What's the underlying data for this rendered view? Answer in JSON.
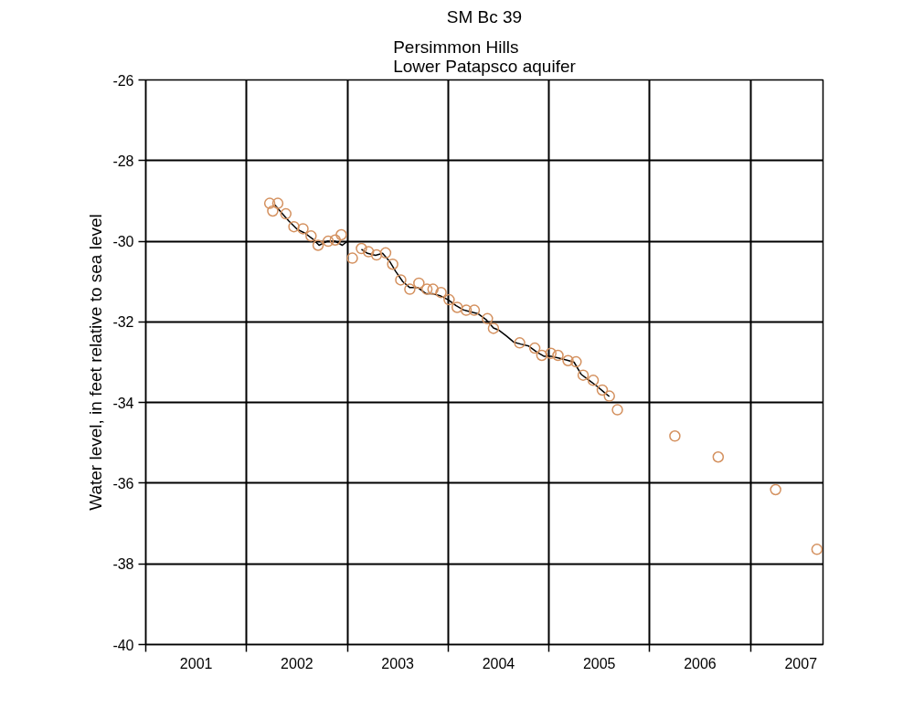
{
  "chart_data": {
    "type": "scatter",
    "title": "SM Bc 39",
    "subtitle": "Persimmon Hills\nLower Patapsco aquifer",
    "ylabel": "Water level, in feet relative to sea level",
    "xlim": [
      2001,
      2007.72
    ],
    "ylim": [
      -40,
      -26
    ],
    "yticks": [
      -40,
      -38,
      -36,
      -34,
      -32,
      -30,
      -28,
      -26
    ],
    "xticks": [
      {
        "value": 2001,
        "label": null
      },
      {
        "value": 2002,
        "label": null
      },
      {
        "value": 2003,
        "label": null
      },
      {
        "value": 2004,
        "label": null
      },
      {
        "value": 2005,
        "label": null
      },
      {
        "value": 2006,
        "label": null
      },
      {
        "value": 2007,
        "label": null
      },
      {
        "value": 2001.5,
        "label": "2001"
      },
      {
        "value": 2002.5,
        "label": "2002"
      },
      {
        "value": 2003.5,
        "label": "2003"
      },
      {
        "value": 2004.5,
        "label": "2004"
      },
      {
        "value": 2005.5,
        "label": "2005"
      },
      {
        "value": 2006.5,
        "label": "2006"
      },
      {
        "value": 2007.5,
        "label": "2007"
      }
    ],
    "grid": true,
    "series": [
      {
        "type": "line",
        "color": "#000000",
        "marker": "none",
        "line_style": "solid",
        "x": [
          2002.28,
          2002.35,
          2002.42,
          2002.5,
          2002.58,
          2002.66,
          2002.72,
          2002.8,
          2002.88,
          2002.95,
          2003.0,
          2003.07,
          2003.14,
          2003.2,
          2003.28,
          2003.35,
          2003.42,
          2003.48,
          2003.55,
          2003.62,
          2003.7,
          2003.78,
          2003.85,
          2003.92,
          2004.0,
          2004.08,
          2004.15,
          2004.22,
          2004.3,
          2004.38,
          2004.45,
          2004.5,
          2004.58,
          2004.65,
          2004.72,
          2004.8,
          2004.88,
          2004.95,
          2005.02,
          2005.1,
          2005.18,
          2005.25,
          2005.32,
          2005.4,
          2005.48,
          2005.55,
          2005.6
        ],
        "values": [
          -29.1,
          -29.3,
          -29.5,
          -29.7,
          -29.8,
          -29.95,
          -30.1,
          -30.0,
          -30.0,
          -30.1,
          -30.0,
          null,
          -30.2,
          -30.3,
          -30.35,
          -30.3,
          -30.5,
          -30.75,
          -31.0,
          -31.15,
          -31.15,
          -31.3,
          -31.3,
          -31.35,
          -31.45,
          -31.6,
          -31.7,
          -31.75,
          -31.8,
          -31.95,
          -32.15,
          -32.2,
          -32.35,
          -32.5,
          -32.55,
          -32.6,
          -32.75,
          -32.85,
          -32.85,
          -32.9,
          -32.95,
          -33.0,
          -33.3,
          -33.45,
          -33.6,
          -33.75,
          -33.85
        ]
      },
      {
        "color": "#d4915f",
        "marker": "circle",
        "x": [
          2002.23,
          2002.26,
          2002.31,
          2002.39,
          2002.47,
          2002.56,
          2002.64,
          2002.71,
          2002.81,
          2002.88,
          2002.94,
          2003.05,
          2003.14,
          2003.21,
          2003.29,
          2003.38,
          2003.45,
          2003.53,
          2003.62,
          2003.71,
          2003.79,
          2003.85,
          2003.93,
          2004.01,
          2004.09,
          2004.18,
          2004.26,
          2004.39,
          2004.45,
          2004.71,
          2004.86,
          2004.93,
          2005.02,
          2005.09,
          2005.19,
          2005.27,
          2005.34,
          2005.44,
          2005.53,
          2005.6,
          2005.68,
          2006.25,
          2006.68,
          2007.25,
          2007.66
        ],
        "values": [
          -29.06,
          -29.25,
          -29.06,
          -29.32,
          -29.64,
          -29.69,
          -29.87,
          -30.1,
          -30.0,
          -29.97,
          -29.84,
          -30.42,
          -30.18,
          -30.26,
          -30.34,
          -30.29,
          -30.57,
          -30.96,
          -31.19,
          -31.04,
          -31.19,
          -31.19,
          -31.27,
          -31.45,
          -31.64,
          -31.71,
          -31.71,
          -31.92,
          -32.16,
          -32.52,
          -32.65,
          -32.83,
          -32.78,
          -32.83,
          -32.96,
          -32.99,
          -33.32,
          -33.45,
          -33.69,
          -33.84,
          -34.18,
          -34.83,
          -35.35,
          -36.16,
          -37.64
        ]
      }
    ]
  }
}
